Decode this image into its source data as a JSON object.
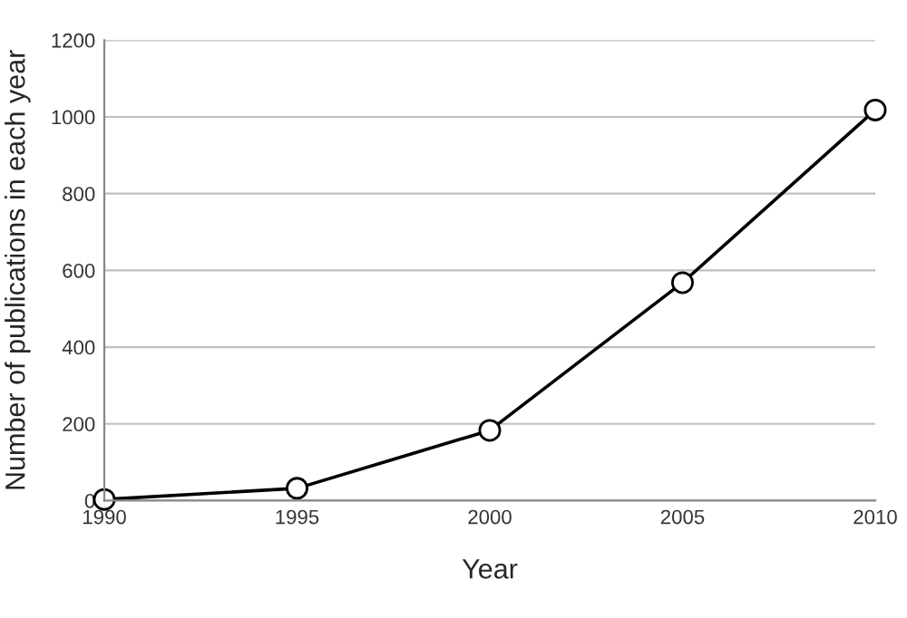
{
  "chart_data": {
    "type": "line",
    "xlabel": "Year",
    "ylabel": "Number of publications in each year",
    "x": [
      1990,
      1995,
      2000,
      2005,
      2010
    ],
    "series": [
      {
        "color": "#000000",
        "values": [
          3,
          32,
          183,
          568,
          1018
        ]
      }
    ],
    "xlim": [
      1990,
      2010
    ],
    "xticks": [
      1990,
      1995,
      2000,
      2005,
      2010
    ],
    "ylim": [
      0,
      1200
    ],
    "yticks": [
      0,
      200,
      400,
      600,
      800,
      1000,
      1200
    ],
    "grid": "y",
    "marker": "circle",
    "line_style": "solid",
    "legend": false
  }
}
